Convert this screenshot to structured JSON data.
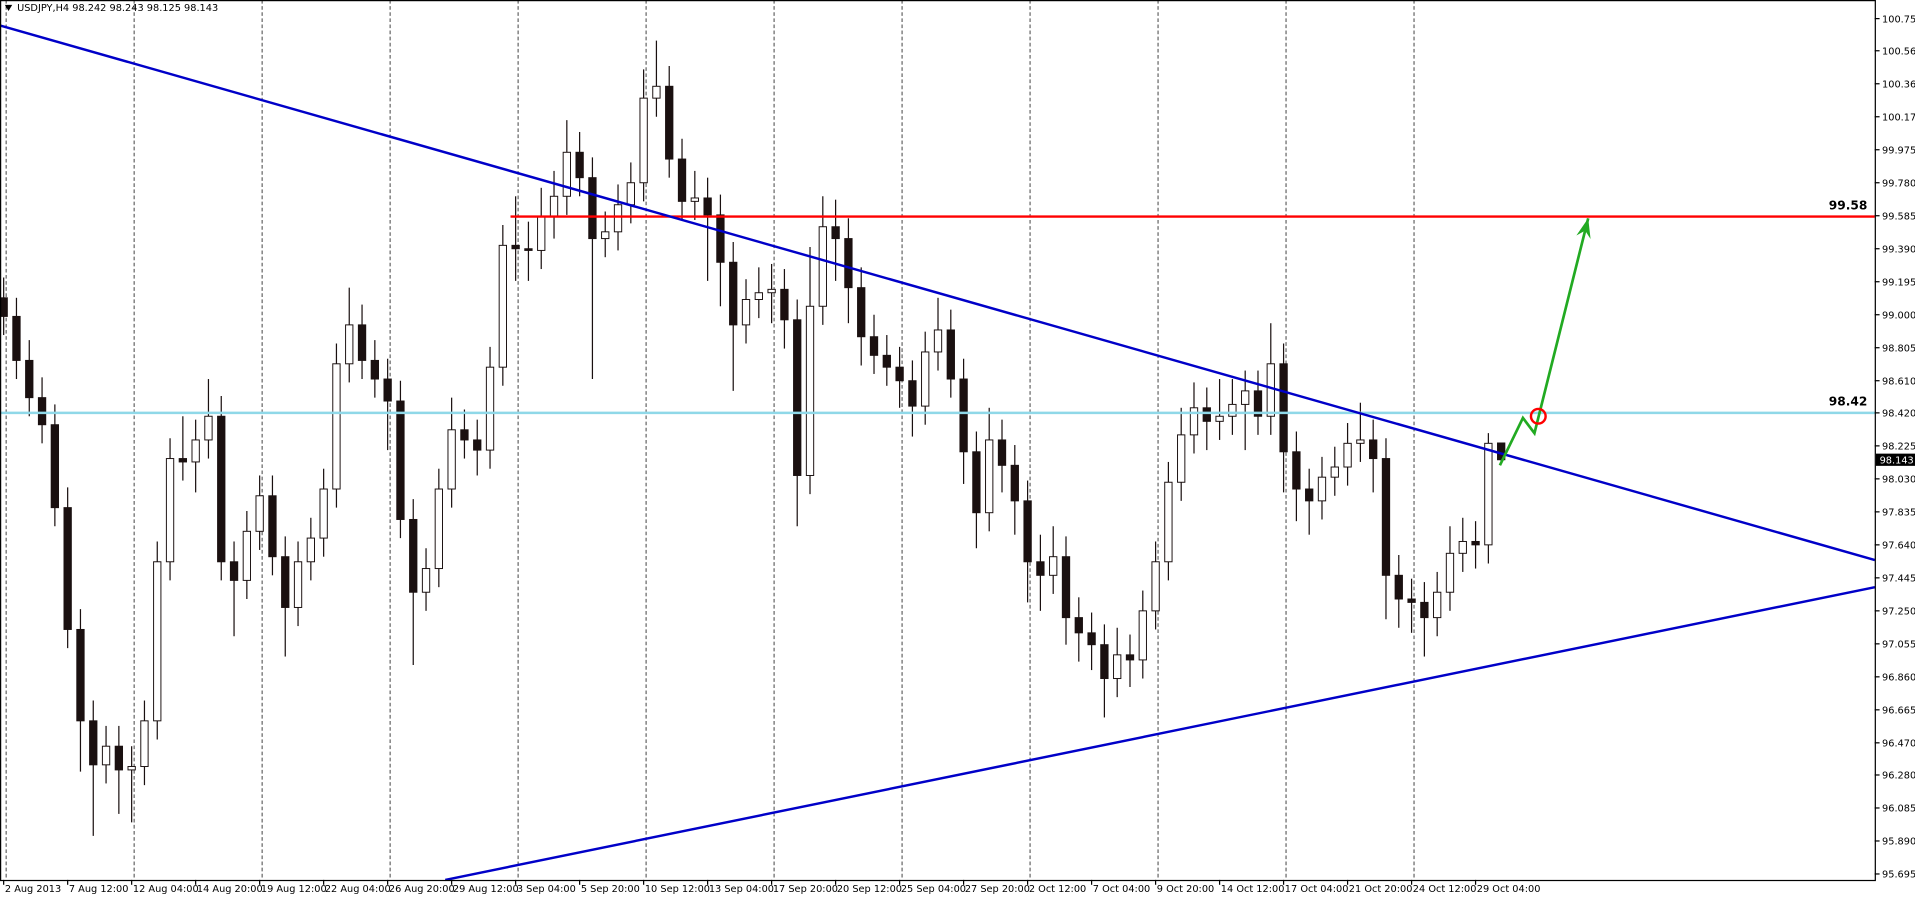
{
  "chart_data": {
    "type": "candlestick",
    "symbol": "USDJPY,H4",
    "categories": [
      "2 Aug 2013",
      null,
      null,
      null,
      null,
      "7 Aug 12:00",
      null,
      null,
      null,
      null,
      "12 Aug 04:00",
      null,
      null,
      null,
      null,
      "14 Aug 20:00",
      null,
      null,
      null,
      null,
      "19 Aug 12:00",
      null,
      null,
      null,
      null,
      "22 Aug 04:00",
      null,
      null,
      null,
      null,
      "26 Aug 20:00",
      null,
      null,
      null,
      null,
      "29 Aug 12:00",
      null,
      null,
      null,
      null,
      "3 Sep 04:00",
      null,
      null,
      null,
      null,
      "5 Sep 20:00",
      null,
      null,
      null,
      null,
      "10 Sep 12:00",
      null,
      null,
      null,
      null,
      "13 Sep 04:00",
      null,
      null,
      null,
      null,
      "17 Sep 20:00",
      null,
      null,
      null,
      null,
      "20 Sep 12:00",
      null,
      null,
      null,
      null,
      "25 Sep 04:00",
      null,
      null,
      null,
      null,
      "27 Sep 20:00",
      null,
      null,
      null,
      null,
      "2 Oct 12:00",
      null,
      null,
      null,
      null,
      "7 Oct 04:00",
      null,
      null,
      null,
      null,
      "9 Oct 20:00",
      null,
      null,
      null,
      null,
      "14 Oct 12:00",
      null,
      null,
      null,
      null,
      "17 Oct 04:00",
      null,
      null,
      null,
      null,
      "21 Oct 20:00",
      null,
      null,
      null,
      null,
      "24 Oct 12:00",
      null,
      null,
      null,
      null,
      "29 Oct 04:00",
      null,
      null
    ],
    "open": [
      99.1,
      98.99,
      98.73,
      98.51,
      98.35,
      97.86,
      97.14,
      96.6,
      96.34,
      96.45,
      96.31,
      96.33,
      96.6,
      97.54,
      98.15,
      98.13,
      98.26,
      98.4,
      97.54,
      97.43,
      97.72,
      97.93,
      97.57,
      97.27,
      97.54,
      97.68,
      97.97,
      98.71,
      98.94,
      98.73,
      98.62,
      98.49,
      97.79,
      97.36,
      97.5,
      97.97,
      98.32,
      98.26,
      98.2,
      98.69,
      99.41,
      99.39,
      99.38,
      99.58,
      99.7,
      99.96,
      99.81,
      99.45,
      99.49,
      99.65,
      99.78,
      100.28,
      100.35,
      99.92,
      99.67,
      99.69,
      99.59,
      99.31,
      98.94,
      99.09,
      99.13,
      99.15,
      98.97,
      98.05,
      99.05,
      99.52,
      99.45,
      99.16,
      98.87,
      98.76,
      98.69,
      98.61,
      98.46,
      98.78,
      98.91,
      98.62,
      98.19,
      97.83,
      98.26,
      98.11,
      97.9,
      97.54,
      97.46,
      97.57,
      97.21,
      97.12,
      97.05,
      96.85,
      96.99,
      96.96,
      97.25,
      97.54,
      98.01,
      98.29,
      98.45,
      98.37,
      98.4,
      98.47,
      98.55,
      98.4,
      98.71,
      98.19,
      97.97,
      97.9,
      98.04,
      98.1,
      98.24,
      98.26,
      98.15,
      97.46,
      97.32,
      97.3,
      97.21,
      97.36,
      97.59,
      97.66,
      97.64,
      98.242
    ],
    "high": [
      99.22,
      99.1,
      98.85,
      98.63,
      98.47,
      97.98,
      97.26,
      96.72,
      96.57,
      96.57,
      96.45,
      96.72,
      97.66,
      98.27,
      98.4,
      98.38,
      98.62,
      98.52,
      97.66,
      97.84,
      98.05,
      98.05,
      97.69,
      97.66,
      97.8,
      98.09,
      98.83,
      99.16,
      99.06,
      98.85,
      98.74,
      98.61,
      97.91,
      97.62,
      98.09,
      98.51,
      98.44,
      98.38,
      98.81,
      99.53,
      99.7,
      99.55,
      99.75,
      99.85,
      100.15,
      100.08,
      99.93,
      99.61,
      99.77,
      99.9,
      100.45,
      100.62,
      100.47,
      100.04,
      99.85,
      99.81,
      99.71,
      99.43,
      99.21,
      99.28,
      99.3,
      99.27,
      99.09,
      99.4,
      99.7,
      99.68,
      99.57,
      99.28,
      99.0,
      98.88,
      98.81,
      98.73,
      98.9,
      99.1,
      99.03,
      98.74,
      98.31,
      98.45,
      98.38,
      98.23,
      98.02,
      97.7,
      97.75,
      97.69,
      97.33,
      97.24,
      97.17,
      97.15,
      97.11,
      97.37,
      97.66,
      98.13,
      98.45,
      98.6,
      98.57,
      98.62,
      98.62,
      98.67,
      98.67,
      98.95,
      98.83,
      98.31,
      98.09,
      98.16,
      98.22,
      98.36,
      98.48,
      98.38,
      98.27,
      97.58,
      97.44,
      97.42,
      97.48,
      97.75,
      97.8,
      97.78,
      98.3,
      98.243
    ],
    "low": [
      98.88,
      98.62,
      98.4,
      98.24,
      97.75,
      97.03,
      96.3,
      95.92,
      96.23,
      96.05,
      96.0,
      96.22,
      96.49,
      97.43,
      98.02,
      97.95,
      98.15,
      97.43,
      97.1,
      97.32,
      97.61,
      97.46,
      96.98,
      97.16,
      97.43,
      97.57,
      97.86,
      98.6,
      98.62,
      98.51,
      98.2,
      97.68,
      96.93,
      97.25,
      97.39,
      97.86,
      98.15,
      98.05,
      98.09,
      98.58,
      99.2,
      99.2,
      99.27,
      99.45,
      99.59,
      99.7,
      98.62,
      99.34,
      99.38,
      99.54,
      99.67,
      100.17,
      99.81,
      99.56,
      99.56,
      99.2,
      99.05,
      98.55,
      98.83,
      98.98,
      98.95,
      98.8,
      97.75,
      97.94,
      98.94,
      99.2,
      98.95,
      98.7,
      98.65,
      98.58,
      98.45,
      98.28,
      98.35,
      98.67,
      98.51,
      98.0,
      97.62,
      97.72,
      97.95,
      97.7,
      97.3,
      97.25,
      97.35,
      97.05,
      96.95,
      96.9,
      96.62,
      96.74,
      96.8,
      96.85,
      97.14,
      97.43,
      97.9,
      98.18,
      98.2,
      98.26,
      98.29,
      98.2,
      98.29,
      98.29,
      97.95,
      97.78,
      97.7,
      97.79,
      97.93,
      97.99,
      98.13,
      97.95,
      97.2,
      97.15,
      97.12,
      96.98,
      97.1,
      97.25,
      97.48,
      97.5,
      97.53,
      98.125
    ],
    "close": [
      98.99,
      98.73,
      98.51,
      98.35,
      97.86,
      97.14,
      96.6,
      96.34,
      96.45,
      96.31,
      96.33,
      96.6,
      97.54,
      98.15,
      98.13,
      98.26,
      98.4,
      97.54,
      97.43,
      97.72,
      97.93,
      97.57,
      97.27,
      97.54,
      97.68,
      97.97,
      98.71,
      98.94,
      98.73,
      98.62,
      98.49,
      97.79,
      97.36,
      97.5,
      97.97,
      98.32,
      98.26,
      98.2,
      98.69,
      99.41,
      99.39,
      99.38,
      99.58,
      99.7,
      99.96,
      99.81,
      99.45,
      99.49,
      99.65,
      99.78,
      100.28,
      100.35,
      99.92,
      99.67,
      99.69,
      99.59,
      99.31,
      98.94,
      99.09,
      99.13,
      99.15,
      98.97,
      98.05,
      99.05,
      99.52,
      99.45,
      99.16,
      98.87,
      98.76,
      98.69,
      98.61,
      98.46,
      98.78,
      98.91,
      98.62,
      98.19,
      97.83,
      98.26,
      98.11,
      97.9,
      97.54,
      97.46,
      97.57,
      97.21,
      97.12,
      97.05,
      96.85,
      96.99,
      96.96,
      97.25,
      97.54,
      98.01,
      98.29,
      98.45,
      98.37,
      98.4,
      98.47,
      98.55,
      98.4,
      98.71,
      98.19,
      97.97,
      97.9,
      98.04,
      98.1,
      98.24,
      98.26,
      98.15,
      97.46,
      97.32,
      97.3,
      97.21,
      97.36,
      97.59,
      97.66,
      97.64,
      98.24,
      98.143
    ],
    "ylim": [
      95.66,
      100.86
    ],
    "yticks": [
      {
        "value": 100.75,
        "label": "100.750"
      },
      {
        "value": 100.56,
        "label": "100.560"
      },
      100.365,
      {
        "value": 100.17,
        "label": "100.170"
      },
      99.975,
      {
        "value": 99.78,
        "label": "99.780"
      },
      99.585,
      {
        "value": 99.39,
        "label": "99.390"
      },
      99.195,
      {
        "value": 99,
        "label": "99.000"
      },
      98.805,
      {
        "value": 98.61,
        "label": "98.610"
      },
      {
        "value": 98.42,
        "label": "98.420"
      },
      98.225,
      {
        "value": 98.03,
        "label": "98.030"
      },
      97.835,
      {
        "value": 97.64,
        "label": "97.640"
      },
      97.445,
      {
        "value": 97.25,
        "label": "97.250"
      },
      97.055,
      {
        "value": 96.86,
        "label": "96.860"
      },
      96.665,
      {
        "value": 96.47,
        "label": "96.470"
      },
      {
        "value": 96.28,
        "label": "96.280"
      },
      96.085,
      {
        "value": 95.89,
        "label": "95.890"
      },
      95.695
    ],
    "grid": true,
    "up_color": "#ffffff",
    "down_color": "#1a1010",
    "wick_color": "#1a1010",
    "horizontal_lines": [
      {
        "value": 99.58,
        "color": "#ff0000",
        "from": 39.6
      },
      {
        "value": 98.42,
        "color": "#8fd8e8",
        "from": -0.3
      }
    ],
    "trend_lines": [
      {
        "color": "#0000c8",
        "x": [
          -0.3,
          146.2
        ],
        "y": [
          100.71,
          97.55
        ]
      },
      {
        "color": "#0000c8",
        "x": [
          34.5,
          146.2
        ],
        "y": [
          95.66,
          97.39
        ]
      }
    ],
    "projection": {
      "color": "#22aa22",
      "x": [
        116.9,
        118.7,
        119.6,
        123.8
      ],
      "y": [
        98.11,
        98.39,
        98.3,
        99.57
      ]
    },
    "marker": {
      "color": "#ff0000",
      "x": 119.9,
      "y": 98.4
    }
  }
}
